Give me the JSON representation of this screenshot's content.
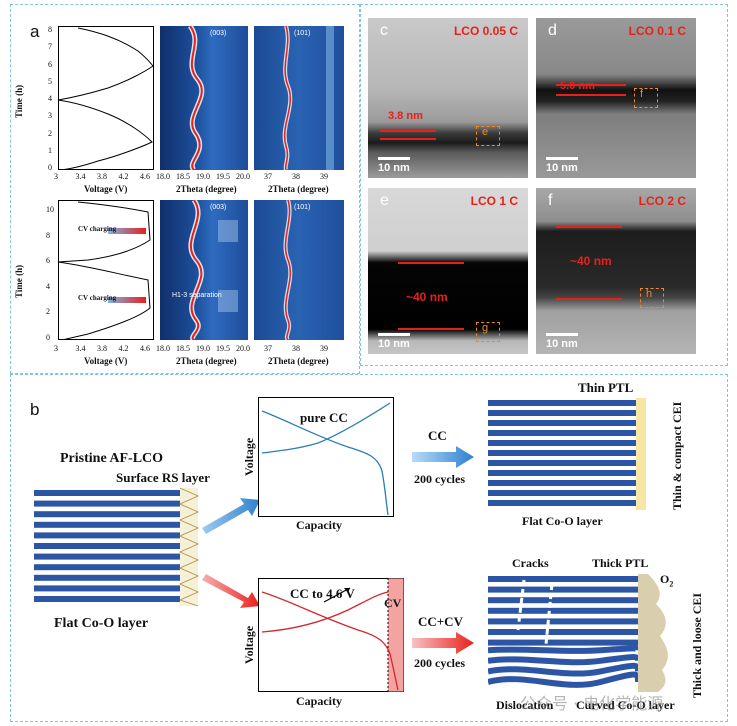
{
  "panel_a": {
    "label": "a",
    "top": {
      "y_label": "Time (h)",
      "y_ticks": [
        "0",
        "1",
        "2",
        "3",
        "4",
        "5",
        "6",
        "7",
        "8"
      ],
      "voltage_ticks": [
        "3",
        "3.4",
        "3.8",
        "4.2",
        "4.6"
      ],
      "voltage_label": "Voltage (V)",
      "theta1_ticks": [
        "18.0",
        "18.5",
        "19.0",
        "19.5",
        "20.0"
      ],
      "theta1_label": "2Theta (degree)",
      "theta1_peak": "(003)",
      "theta2_ticks": [
        "37",
        "38",
        "39"
      ],
      "theta2_label": "2Theta (degree)",
      "theta2_peak": "(101)"
    },
    "bottom": {
      "y_label": "Time (h)",
      "y_ticks": [
        "0",
        "2",
        "4",
        "6",
        "8",
        "10"
      ],
      "voltage_ticks": [
        "3",
        "3.4",
        "3.8",
        "4.2",
        "4.6"
      ],
      "voltage_label": "Voltage (V)",
      "cv_label_1": "CV charging",
      "cv_label_2": "CV charging",
      "theta1_ticks": [
        "18.0",
        "18.5",
        "19.0",
        "19.5",
        "20.0"
      ],
      "theta1_label": "2Theta (degree)",
      "theta1_peak": "(003)",
      "h13": "H1-3  separation",
      "theta2_ticks": [
        "37",
        "38",
        "39"
      ],
      "theta2_label": "2Theta (degree)",
      "theta2_peak": "(101)"
    }
  },
  "tem": {
    "c": {
      "letter": "c",
      "title": "LCO 0.05 C",
      "scale": "10 nm",
      "measure": "3.8 nm",
      "box": "e"
    },
    "d": {
      "letter": "d",
      "title": "LCO 0.1 C",
      "scale": "10 nm",
      "measure": "5.0 nm",
      "box": "f"
    },
    "e": {
      "letter": "e",
      "title": "LCO 1 C",
      "scale": "10 nm",
      "measure": "~40 nm",
      "box": "g"
    },
    "f": {
      "letter": "f",
      "title": "LCO 2 C",
      "scale": "10 nm",
      "measure": "~40 nm",
      "box": "h"
    }
  },
  "panel_b": {
    "label": "b",
    "pristine": "Pristine AF-LCO",
    "surface_rs": "Surface RS layer",
    "flat_coo": "Flat Co-O layer",
    "top_graph": {
      "title": "pure CC",
      "ylabel": "Voltage",
      "xlabel": "Capacity"
    },
    "bottom_graph": {
      "title": "CC to 4.6 V",
      "cv": "CV",
      "ylabel": "Voltage",
      "xlabel": "Capacity"
    },
    "arrow_cc": {
      "label": "CC",
      "cycles": "200 cycles"
    },
    "arrow_cccv": {
      "label": "CC+CV",
      "cycles": "200 cycles"
    },
    "thin_ptl": "Thin PTL",
    "thin_cei": "Thin & compact CEI",
    "flat_coo_right": "Flat Co-O layer",
    "cracks": "Cracks",
    "thick_ptl": "Thick PTL",
    "o2": "O",
    "o2_sub": "2",
    "thick_cei": "Thick and loose CEI",
    "dislocation": "Dislocation",
    "curved_coo": "Curved Co-O layer"
  },
  "watermark": "公众号 · 电化学能源",
  "colors": {
    "layer_blue": "#2d55a5",
    "cei_yellow": "#f6e7a6",
    "cei_beige": "#d9cfae",
    "accent_red": "#e8201a",
    "frame_blue": "#7fc4e8"
  }
}
